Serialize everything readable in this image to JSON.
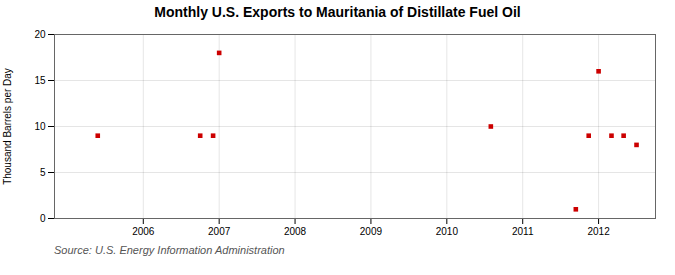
{
  "chart_data": {
    "type": "scatter",
    "title": "Monthly U.S. Exports to Mauritania of Distillate Fuel Oil",
    "ylabel": "Thousand Barrels per Day",
    "annotation": "Source: U.S. Energy Information Administration",
    "x": [
      2005.4,
      2006.75,
      2006.92,
      2007.0,
      2010.58,
      2011.7,
      2011.87,
      2012.0,
      2012.17,
      2012.33,
      2012.5
    ],
    "values": [
      9,
      9,
      9,
      18,
      10,
      1,
      9,
      16,
      9,
      9,
      8
    ],
    "color": "#cc0000",
    "marker": "square",
    "xlim": [
      2004.83,
      2012.75
    ],
    "ylim": [
      0,
      20
    ],
    "xticks": [
      2006,
      2007,
      2008,
      2009,
      2010,
      2011,
      2012
    ],
    "yticks": [
      0,
      5,
      10,
      15,
      20
    ],
    "grid": true
  }
}
